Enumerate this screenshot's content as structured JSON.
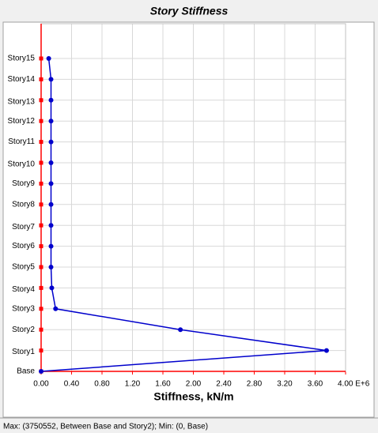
{
  "chart_data": {
    "type": "line",
    "orientation": "horizontal",
    "title": "Story Stiffness",
    "x_label": "Stiffness, kN/m",
    "footer": "Max: (3750552, Between Base and Story2);   Min: (0, Base)",
    "categories": [
      "Base",
      "Story1",
      "Story2",
      "Story3",
      "Story4",
      "Story5",
      "Story6",
      "Story7",
      "Story8",
      "Story9",
      "Story10",
      "Story11",
      "Story12",
      "Story13",
      "Story14",
      "Story15"
    ],
    "series": [
      {
        "name": "Stiffness",
        "color": "#0000cc",
        "values": [
          0,
          3.75,
          1.83,
          0.19,
          0.14,
          0.13,
          0.13,
          0.13,
          0.13,
          0.13,
          0.13,
          0.13,
          0.13,
          0.13,
          0.13,
          0.1
        ]
      }
    ],
    "xlim": [
      0,
      4
    ],
    "xticks": [
      {
        "value": 0,
        "label": "0.00"
      },
      {
        "value": 0.4,
        "label": "0.40"
      },
      {
        "value": 0.8,
        "label": "0.80"
      },
      {
        "value": 1.2,
        "label": "1.20"
      },
      {
        "value": 1.6,
        "label": "1.60"
      },
      {
        "value": 2,
        "label": "2.00"
      },
      {
        "value": 2.4,
        "label": "2.40"
      },
      {
        "value": 2.8,
        "label": "2.80"
      },
      {
        "value": 3.2,
        "label": "3.20"
      },
      {
        "value": 3.6,
        "label": "3.60"
      },
      {
        "value": 4,
        "label": "4.00 E+6"
      }
    ],
    "grid": true,
    "axis_color": "#ff0000"
  }
}
